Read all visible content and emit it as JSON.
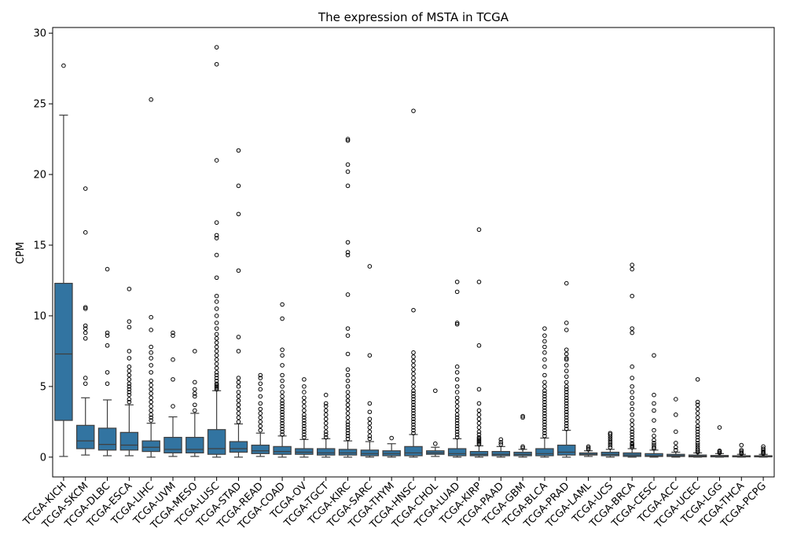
{
  "chart_data": {
    "type": "box",
    "title": "The expression of MSTA in TCGA",
    "xlabel": "",
    "ylabel": "CPM",
    "ylim": [
      -1.4,
      30.4
    ],
    "yticks": [
      0,
      5,
      10,
      15,
      20,
      25,
      30
    ],
    "grid": false,
    "box_color": "#3274a1",
    "categories": [
      "TCGA-KICH",
      "TCGA-SKCM",
      "TCGA-DLBC",
      "TCGA-ESCA",
      "TCGA-LIHC",
      "TCGA-UVM",
      "TCGA-MESO",
      "TCGA-LUSC",
      "TCGA-STAD",
      "TCGA-READ",
      "TCGA-COAD",
      "TCGA-OV",
      "TCGA-TGCT",
      "TCGA-KIRC",
      "TCGA-SARC",
      "TCGA-THYM",
      "TCGA-HNSC",
      "TCGA-CHOL",
      "TCGA-LUAD",
      "TCGA-KIRP",
      "TCGA-PAAD",
      "TCGA-GBM",
      "TCGA-BLCA",
      "TCGA-PRAD",
      "TCGA-LAML",
      "TCGA-UCS",
      "TCGA-BRCA",
      "TCGA-CESC",
      "TCGA-ACC",
      "TCGA-UCEC",
      "TCGA-LGG",
      "TCGA-THCA",
      "TCGA-PCPG"
    ],
    "boxes": [
      {
        "whislo": 0.05,
        "q1": 2.6,
        "med": 7.3,
        "q3": 12.3,
        "whishi": 24.2,
        "fliers": [
          27.7
        ]
      },
      {
        "whislo": 0.15,
        "q1": 0.6,
        "med": 1.15,
        "q3": 2.25,
        "whishi": 4.2,
        "fliers": [
          5.2,
          5.6,
          8.4,
          8.8,
          9.1,
          9.3,
          10.5,
          10.6,
          15.9,
          19.0
        ]
      },
      {
        "whislo": 0.1,
        "q1": 0.5,
        "med": 0.9,
        "q3": 2.05,
        "whishi": 4.05,
        "fliers": [
          5.2,
          6.0,
          7.9,
          8.6,
          8.8,
          13.3
        ]
      },
      {
        "whislo": 0.1,
        "q1": 0.5,
        "med": 0.85,
        "q3": 1.75,
        "whishi": 3.7,
        "fliers": [
          3.9,
          4.1,
          4.4,
          4.6,
          4.8,
          5.0,
          5.2,
          5.5,
          5.8,
          6.1,
          6.4,
          7.0,
          7.5,
          9.2,
          9.6,
          11.9
        ]
      },
      {
        "whislo": 0.0,
        "q1": 0.4,
        "med": 0.7,
        "q3": 1.15,
        "whishi": 2.4,
        "fliers": [
          2.6,
          2.8,
          3.0,
          3.3,
          3.6,
          3.9,
          4.2,
          4.5,
          4.8,
          5.1,
          5.4,
          6.0,
          6.5,
          7.0,
          7.4,
          7.8,
          9.0,
          9.9,
          25.3
        ]
      },
      {
        "whislo": 0.05,
        "q1": 0.3,
        "med": 0.55,
        "q3": 1.4,
        "whishi": 2.85,
        "fliers": [
          3.6,
          5.5,
          6.9,
          8.6,
          8.8
        ]
      },
      {
        "whislo": 0.05,
        "q1": 0.3,
        "med": 0.55,
        "q3": 1.4,
        "whishi": 3.1,
        "fliers": [
          3.3,
          3.7,
          4.3,
          4.5,
          4.8,
          5.3,
          7.5
        ]
      },
      {
        "whislo": 0.0,
        "q1": 0.2,
        "med": 0.6,
        "q3": 1.95,
        "whishi": 4.7,
        "fliers": [
          4.8,
          4.9,
          5.0,
          5.1,
          5.2,
          5.4,
          5.6,
          5.8,
          6.0,
          6.3,
          6.6,
          6.9,
          7.2,
          7.5,
          7.8,
          8.1,
          8.4,
          8.7,
          9.1,
          9.5,
          10.0,
          10.5,
          11.0,
          11.4,
          12.7,
          14.3,
          15.5,
          15.7,
          16.6,
          21.0,
          27.8,
          29.0
        ]
      },
      {
        "whislo": 0.0,
        "q1": 0.35,
        "med": 0.6,
        "q3": 1.1,
        "whishi": 2.35,
        "fliers": [
          2.5,
          2.8,
          3.1,
          3.4,
          3.7,
          4.0,
          4.3,
          4.6,
          5.0,
          5.3,
          5.6,
          7.5,
          8.5,
          13.2,
          17.2,
          19.2,
          21.7
        ]
      },
      {
        "whislo": 0.05,
        "q1": 0.25,
        "med": 0.45,
        "q3": 0.85,
        "whishi": 1.7,
        "fliers": [
          1.9,
          2.2,
          2.5,
          2.8,
          3.1,
          3.4,
          3.8,
          4.3,
          4.8,
          5.2,
          5.6,
          5.8
        ]
      },
      {
        "whislo": 0.0,
        "q1": 0.2,
        "med": 0.4,
        "q3": 0.75,
        "whishi": 1.5,
        "fliers": [
          1.6,
          1.8,
          2.0,
          2.2,
          2.4,
          2.6,
          2.8,
          3.0,
          3.2,
          3.4,
          3.6,
          3.8,
          4.0,
          4.3,
          4.6,
          5.0,
          5.4,
          5.8,
          6.5,
          7.2,
          7.6,
          9.8,
          10.8
        ]
      },
      {
        "whislo": 0.0,
        "q1": 0.2,
        "med": 0.35,
        "q3": 0.6,
        "whishi": 1.25,
        "fliers": [
          1.4,
          1.6,
          1.8,
          2.0,
          2.2,
          2.4,
          2.6,
          2.8,
          3.0,
          3.3,
          3.6,
          3.9,
          4.2,
          4.6,
          5.0,
          5.5
        ]
      },
      {
        "whislo": 0.0,
        "q1": 0.15,
        "med": 0.3,
        "q3": 0.6,
        "whishi": 1.3,
        "fliers": [
          1.4,
          1.6,
          1.8,
          2.1,
          2.4,
          2.7,
          3.0,
          3.3,
          3.6,
          3.8,
          4.4
        ]
      },
      {
        "whislo": 0.0,
        "q1": 0.15,
        "med": 0.3,
        "q3": 0.55,
        "whishi": 1.15,
        "fliers": [
          1.3,
          1.5,
          1.7,
          1.9,
          2.1,
          2.3,
          2.5,
          2.8,
          3.1,
          3.4,
          3.7,
          4.0,
          4.3,
          4.6,
          5.0,
          5.4,
          5.8,
          6.2,
          7.3,
          8.6,
          9.1,
          11.5,
          14.3,
          14.5,
          15.2,
          19.2,
          20.2,
          20.7,
          22.4,
          22.5
        ]
      },
      {
        "whislo": 0.0,
        "q1": 0.1,
        "med": 0.25,
        "q3": 0.5,
        "whishi": 1.1,
        "fliers": [
          1.3,
          1.5,
          1.8,
          2.1,
          2.4,
          2.7,
          3.2,
          3.8,
          7.2,
          13.5
        ]
      },
      {
        "whislo": 0.0,
        "q1": 0.1,
        "med": 0.25,
        "q3": 0.45,
        "whishi": 0.95,
        "fliers": [
          1.35
        ]
      },
      {
        "whislo": 0.0,
        "q1": 0.1,
        "med": 0.3,
        "q3": 0.75,
        "whishi": 1.6,
        "fliers": [
          1.7,
          1.9,
          2.1,
          2.3,
          2.5,
          2.7,
          2.9,
          3.1,
          3.3,
          3.5,
          3.7,
          3.9,
          4.1,
          4.3,
          4.5,
          4.7,
          5.0,
          5.3,
          5.6,
          5.9,
          6.2,
          6.5,
          6.8,
          7.1,
          7.4,
          10.4,
          24.5
        ]
      },
      {
        "whislo": 0.05,
        "q1": 0.2,
        "med": 0.3,
        "q3": 0.45,
        "whishi": 0.7,
        "fliers": [
          0.95,
          4.7
        ]
      },
      {
        "whislo": 0.0,
        "q1": 0.1,
        "med": 0.25,
        "q3": 0.6,
        "whishi": 1.3,
        "fliers": [
          1.4,
          1.6,
          1.8,
          2.0,
          2.2,
          2.4,
          2.6,
          2.8,
          3.0,
          3.3,
          3.6,
          3.9,
          4.2,
          4.6,
          5.0,
          5.5,
          6.0,
          6.4,
          9.4,
          9.5,
          11.7,
          12.4
        ]
      },
      {
        "whislo": 0.0,
        "q1": 0.1,
        "med": 0.2,
        "q3": 0.4,
        "whishi": 0.8,
        "fliers": [
          0.9,
          1.0,
          1.1,
          1.2,
          1.3,
          1.4,
          1.6,
          1.8,
          2.1,
          2.4,
          2.7,
          3.0,
          3.3,
          3.8,
          4.8,
          7.9,
          12.4,
          16.1
        ]
      },
      {
        "whislo": 0.0,
        "q1": 0.1,
        "med": 0.2,
        "q3": 0.4,
        "whishi": 0.75,
        "fliers": [
          0.9,
          1.05,
          1.25
        ]
      },
      {
        "whislo": 0.0,
        "q1": 0.1,
        "med": 0.2,
        "q3": 0.35,
        "whishi": 0.55,
        "fliers": [
          0.65,
          0.75,
          2.8,
          2.9
        ]
      },
      {
        "whislo": 0.0,
        "q1": 0.1,
        "med": 0.25,
        "q3": 0.6,
        "whishi": 1.35,
        "fliers": [
          1.5,
          1.7,
          1.9,
          2.1,
          2.3,
          2.5,
          2.7,
          2.9,
          3.1,
          3.3,
          3.5,
          3.7,
          3.9,
          4.1,
          4.3,
          4.5,
          4.7,
          5.0,
          5.3,
          5.8,
          6.4,
          6.9,
          7.4,
          7.8,
          8.2,
          8.6,
          9.1
        ]
      },
      {
        "whislo": 0.0,
        "q1": 0.15,
        "med": 0.35,
        "q3": 0.85,
        "whishi": 1.9,
        "fliers": [
          2.0,
          2.2,
          2.4,
          2.6,
          2.8,
          3.0,
          3.2,
          3.4,
          3.6,
          3.8,
          4.0,
          4.2,
          4.4,
          4.6,
          4.8,
          5.0,
          5.3,
          5.7,
          6.1,
          6.5,
          6.9,
          7.0,
          7.3,
          7.6,
          9.0,
          9.5,
          12.3
        ]
      },
      {
        "whislo": 0.05,
        "q1": 0.15,
        "med": 0.2,
        "q3": 0.3,
        "whishi": 0.45,
        "fliers": [
          0.55,
          0.65,
          0.75
        ]
      },
      {
        "whislo": 0.0,
        "q1": 0.1,
        "med": 0.2,
        "q3": 0.35,
        "whishi": 0.55,
        "fliers": [
          0.7,
          0.85,
          1.0,
          1.15,
          1.3,
          1.45,
          1.6,
          1.7
        ]
      },
      {
        "whislo": 0.0,
        "q1": 0.05,
        "med": 0.15,
        "q3": 0.3,
        "whishi": 0.6,
        "fliers": [
          0.7,
          0.8,
          0.9,
          1.0,
          1.2,
          1.4,
          1.6,
          1.8,
          2.0,
          2.3,
          2.6,
          3.0,
          3.4,
          3.8,
          4.2,
          4.6,
          5.0,
          5.6,
          6.4,
          8.8,
          9.1,
          11.4,
          13.3,
          13.6
        ]
      },
      {
        "whislo": 0.0,
        "q1": 0.05,
        "med": 0.1,
        "q3": 0.25,
        "whishi": 0.5,
        "fliers": [
          0.6,
          0.7,
          0.85,
          1.0,
          1.2,
          1.5,
          1.9,
          2.6,
          3.3,
          3.8,
          4.4,
          7.2
        ]
      },
      {
        "whislo": 0.0,
        "q1": 0.05,
        "med": 0.1,
        "q3": 0.2,
        "whishi": 0.35,
        "fliers": [
          0.5,
          0.7,
          1.0,
          1.8,
          3.0,
          4.1
        ]
      },
      {
        "whislo": 0.0,
        "q1": 0.02,
        "med": 0.08,
        "q3": 0.15,
        "whishi": 0.3,
        "fliers": [
          0.35,
          0.45,
          0.55,
          0.7,
          0.85,
          1.0,
          1.2,
          1.4,
          1.6,
          1.8,
          2.0,
          2.2,
          2.5,
          2.8,
          3.1,
          3.4,
          3.7,
          3.9,
          5.5
        ]
      },
      {
        "whislo": 0.0,
        "q1": 0.02,
        "med": 0.06,
        "q3": 0.12,
        "whishi": 0.25,
        "fliers": [
          0.3,
          0.38,
          0.45,
          2.1
        ]
      },
      {
        "whislo": 0.0,
        "q1": 0.02,
        "med": 0.05,
        "q3": 0.1,
        "whishi": 0.2,
        "fliers": [
          0.25,
          0.3,
          0.4,
          0.5,
          0.85
        ]
      },
      {
        "whislo": 0.0,
        "q1": 0.02,
        "med": 0.05,
        "q3": 0.1,
        "whishi": 0.2,
        "fliers": [
          0.25,
          0.32,
          0.4,
          0.5,
          0.6,
          0.75
        ]
      }
    ]
  }
}
